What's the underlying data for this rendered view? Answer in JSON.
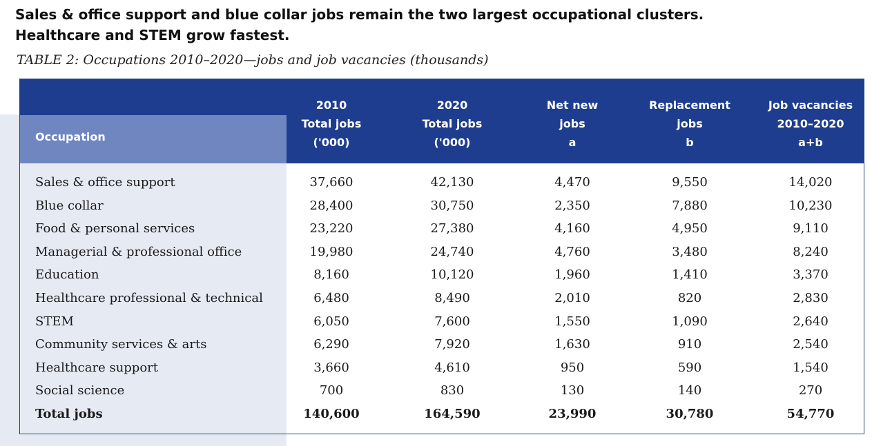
{
  "headline": {
    "line1": "Sales & office support and blue collar jobs remain the two largest occupational clusters.",
    "line2": "Healthcare and STEM grow fastest."
  },
  "subtitle": "TABLE 2: Occupations 2010–2020—jobs and job vacancies (thousands)",
  "table": {
    "occupation_header": "Occupation",
    "columns": [
      {
        "l1": "2010",
        "l2": "Total jobs",
        "l3": "('000)"
      },
      {
        "l1": "2020",
        "l2": "Total jobs",
        "l3": "('000)"
      },
      {
        "l1": "Net new",
        "l2": "jobs",
        "l3": "a"
      },
      {
        "l1": "Replacement",
        "l2": "jobs",
        "l3": "b"
      },
      {
        "l1": "Job vacancies",
        "l2": "2010–2020",
        "l3": "a+b"
      }
    ],
    "rows": [
      {
        "name": "Sales & office support",
        "v": [
          "37,660",
          "42,130",
          "4,470",
          "9,550",
          "14,020"
        ]
      },
      {
        "name": "Blue collar",
        "v": [
          "28,400",
          "30,750",
          "2,350",
          "7,880",
          "10,230"
        ]
      },
      {
        "name": "Food & personal services",
        "v": [
          "23,220",
          "27,380",
          "4,160",
          "4,950",
          "9,110"
        ]
      },
      {
        "name": "Managerial & professional office",
        "v": [
          "19,980",
          "24,740",
          "4,760",
          "3,480",
          "8,240"
        ]
      },
      {
        "name": "Education",
        "v": [
          "8,160",
          "10,120",
          "1,960",
          "1,410",
          "3,370"
        ]
      },
      {
        "name": "Healthcare professional & technical",
        "v": [
          "6,480",
          "8,490",
          "2,010",
          "820",
          "2,830"
        ]
      },
      {
        "name": "STEM",
        "v": [
          "6,050",
          "7,600",
          "1,550",
          "1,090",
          "2,640"
        ]
      },
      {
        "name": "Community services & arts",
        "v": [
          "6,290",
          "7,920",
          "1,630",
          "910",
          "2,540"
        ]
      },
      {
        "name": "Healthcare support",
        "v": [
          "3,660",
          "4,610",
          "950",
          "590",
          "1,540"
        ]
      },
      {
        "name": "Social science",
        "v": [
          "700",
          "830",
          "130",
          "140",
          "270"
        ]
      }
    ],
    "total": {
      "name": "Total jobs",
      "v": [
        "140,600",
        "164,590",
        "23,990",
        "30,780",
        "54,770"
      ]
    }
  },
  "colors": {
    "header_blue": "#1e3d8f",
    "occupation_header": "#6f86c0",
    "occupation_bg": "#e6eaf3"
  }
}
